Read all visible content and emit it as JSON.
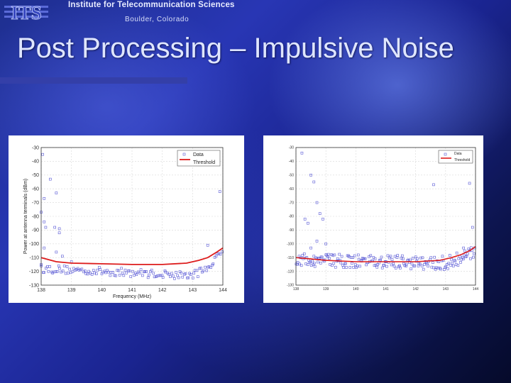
{
  "header": {
    "logo_text": "ITS",
    "org_name": "Institute for Telecommunication Sciences",
    "location": "Boulder, Colorado"
  },
  "slide": {
    "title": "Post Processing – Impulsive Noise"
  },
  "colors": {
    "data": "#5b5bd6",
    "threshold": "#dd1c1c",
    "grid": "#d8d8d8"
  },
  "chart_data": [
    {
      "type": "scatter",
      "xlabel": "Frequency (MHz)",
      "ylabel": "Power at antenna terminals (dBm)",
      "xlim": [
        138,
        144
      ],
      "ylim": [
        -130,
        -30
      ],
      "xticks": [
        138,
        139,
        140,
        141,
        142,
        143,
        144
      ],
      "yticks": [
        -30,
        -40,
        -50,
        -60,
        -70,
        -80,
        -90,
        -100,
        -110,
        -120,
        -130
      ],
      "grid": true,
      "legend_position": "top-right",
      "series": [
        {
          "name": "Data",
          "style": "markers",
          "outliers": [
            [
              138.05,
              -35
            ],
            [
              138.3,
              -53
            ],
            [
              138.5,
              -63
            ],
            [
              138.45,
              -88
            ],
            [
              138.1,
              -67
            ],
            [
              138.6,
              -89
            ],
            [
              138.6,
              -92
            ],
            [
              138.0,
              -77
            ],
            [
              138.1,
              -84
            ],
            [
              138.15,
              -88
            ],
            [
              138.1,
              -103
            ],
            [
              138.0,
              -115
            ],
            [
              138.5,
              -106
            ],
            [
              138.7,
              -109
            ],
            [
              143.9,
              -62
            ],
            [
              143.5,
              -101
            ],
            [
              139.0,
              -113
            ]
          ],
          "noise_floor": {
            "x_start": 138.0,
            "x_end": 144.0,
            "count": 130,
            "segments": [
              [
                138.0,
                -118
              ],
              [
                143.0,
                -123
              ],
              [
                143.5,
                -117
              ],
              [
                144.0,
                -106
              ]
            ],
            "spread": 6
          }
        },
        {
          "name": "Threshold",
          "style": "line",
          "points": [
            [
              138.0,
              -110
            ],
            [
              138.5,
              -113
            ],
            [
              139.0,
              -114
            ],
            [
              140.0,
              -114.5
            ],
            [
              141.0,
              -115
            ],
            [
              142.0,
              -115
            ],
            [
              142.8,
              -114
            ],
            [
              143.2,
              -112
            ],
            [
              143.5,
              -110
            ],
            [
              143.8,
              -106
            ],
            [
              144.0,
              -103
            ]
          ]
        }
      ]
    },
    {
      "type": "scatter",
      "xlim": [
        138,
        144
      ],
      "ylim": [
        -130,
        -30
      ],
      "xticks": [
        138,
        139,
        140,
        141,
        142,
        143,
        144
      ],
      "yticks": [
        -30,
        -40,
        -50,
        -60,
        -70,
        -80,
        -90,
        -100,
        -110,
        -120,
        -130
      ],
      "grid": true,
      "legend_position": "top-right",
      "series": [
        {
          "name": "Data",
          "style": "markers",
          "outliers": [
            [
              138.2,
              -34
            ],
            [
              138.5,
              -50
            ],
            [
              138.6,
              -55
            ],
            [
              138.7,
              -70
            ],
            [
              138.8,
              -78
            ],
            [
              138.9,
              -82
            ],
            [
              138.3,
              -82
            ],
            [
              138.4,
              -85
            ],
            [
              138.5,
              -103
            ],
            [
              138.6,
              -109
            ],
            [
              138.7,
              -98
            ],
            [
              142.6,
              -57
            ],
            [
              143.8,
              -56
            ],
            [
              143.9,
              -88
            ],
            [
              139.0,
              -100
            ],
            [
              143.6,
              -103
            ]
          ],
          "noise_floor": {
            "x_start": 138.0,
            "x_end": 144.0,
            "count": 200,
            "segments": [
              [
                138.0,
                -112
              ],
              [
                143.0,
                -114
              ],
              [
                143.5,
                -110
              ],
              [
                144.0,
                -104
              ]
            ],
            "spread": 10
          }
        },
        {
          "name": "Threshold",
          "style": "line",
          "points": [
            [
              138.0,
              -110
            ],
            [
              138.5,
              -111
            ],
            [
              139.0,
              -112
            ],
            [
              140.0,
              -113
            ],
            [
              141.0,
              -113
            ],
            [
              142.0,
              -113
            ],
            [
              142.8,
              -112
            ],
            [
              143.2,
              -110
            ],
            [
              143.5,
              -108
            ],
            [
              143.8,
              -105
            ],
            [
              144.0,
              -102
            ]
          ]
        }
      ]
    }
  ]
}
